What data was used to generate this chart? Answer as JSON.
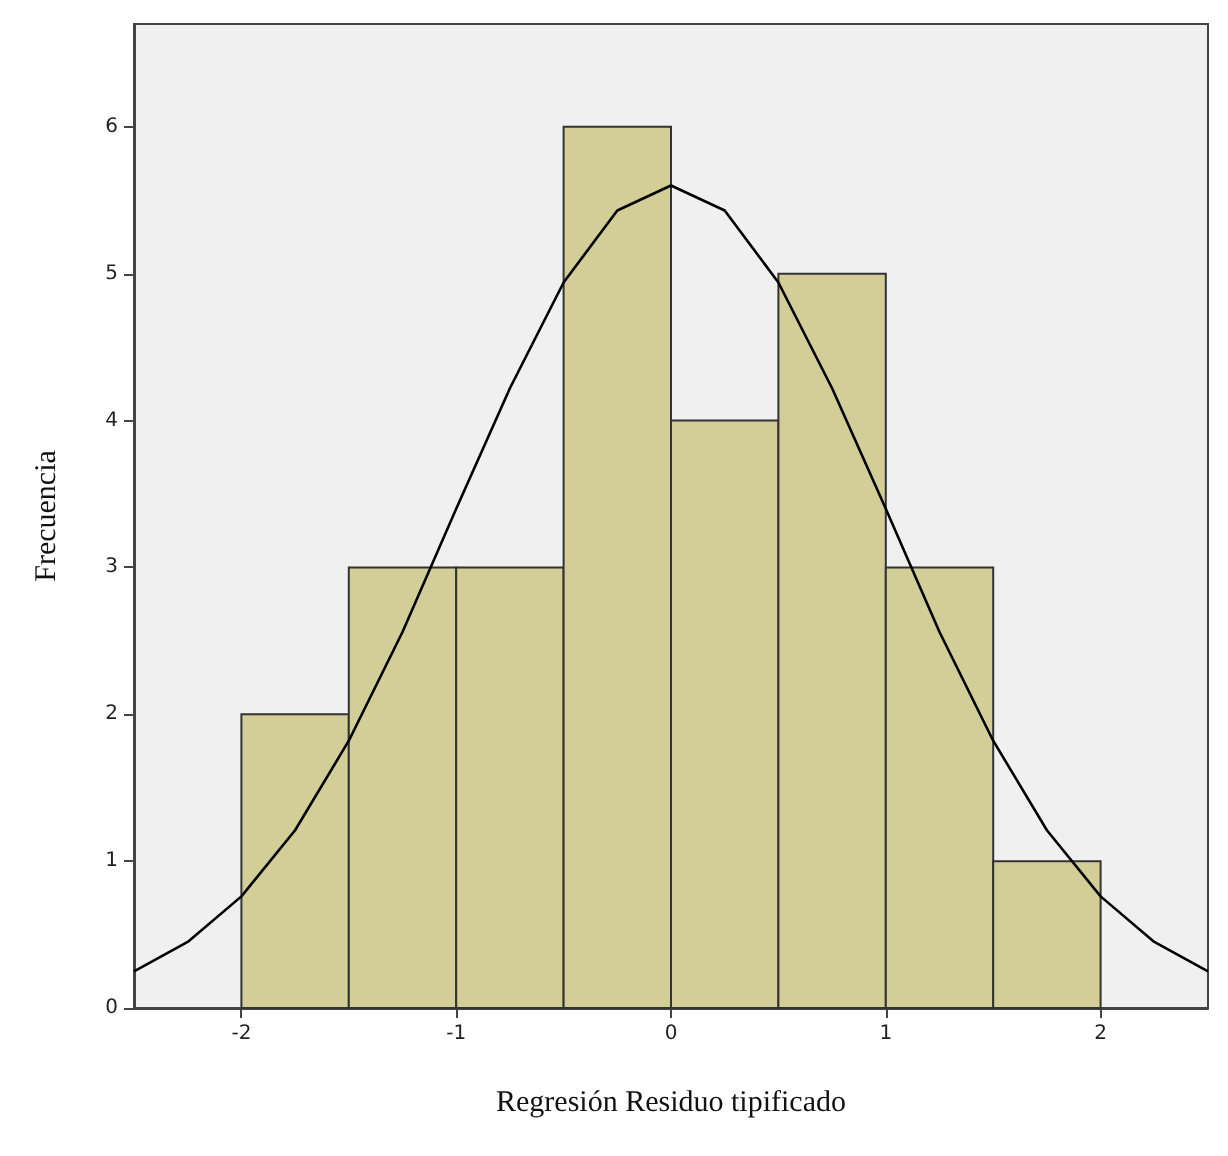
{
  "chart_data": {
    "type": "histogram",
    "xlabel": "Regresión Residuo tipificado",
    "ylabel": "Frecuencia",
    "bins": [
      -2,
      -1.5,
      -1,
      -0.5,
      0,
      0.5,
      1,
      1.5,
      2
    ],
    "series": [
      {
        "color": "#d3ce97",
        "values": [
          2,
          3,
          3,
          6,
          4,
          5,
          3,
          1
        ]
      },
      {
        "type": "line",
        "color": "#000000",
        "x": [
          -2.5,
          -2.25,
          -2,
          -1.75,
          -1.5,
          -1.25,
          -1,
          -0.75,
          -0.5,
          -0.25,
          0,
          0.25,
          0.5,
          0.75,
          1,
          1.25,
          1.5,
          1.75,
          2,
          2.25,
          2.5
        ],
        "values": [
          0.25,
          0.45,
          0.76,
          1.21,
          1.82,
          2.56,
          3.4,
          4.22,
          4.94,
          5.43,
          5.6,
          5.43,
          4.94,
          4.22,
          3.4,
          2.56,
          1.82,
          1.21,
          0.76,
          0.45,
          0.25
        ]
      }
    ],
    "xlim": [
      -2.5,
      2.5
    ],
    "xticks": [
      -2,
      -1,
      0,
      1,
      2
    ],
    "ylim": [
      0,
      6.7
    ],
    "yticks": [
      0,
      1,
      2,
      3,
      4,
      5,
      6
    ],
    "grid": false,
    "marker": "none",
    "line_style": "solid"
  }
}
